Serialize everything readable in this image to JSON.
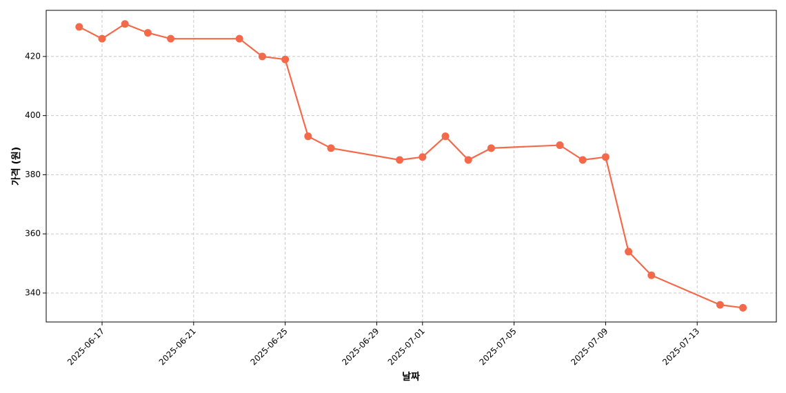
{
  "chart_data": {
    "type": "line",
    "x_label": "날짜",
    "y_label": "가격 (원)",
    "x": [
      "2025-06-16",
      "2025-06-17",
      "2025-06-18",
      "2025-06-19",
      "2025-06-20",
      "2025-06-23",
      "2025-06-24",
      "2025-06-25",
      "2025-06-26",
      "2025-06-27",
      "2025-06-30",
      "2025-07-01",
      "2025-07-02",
      "2025-07-03",
      "2025-07-04",
      "2025-07-07",
      "2025-07-08",
      "2025-07-09",
      "2025-07-10",
      "2025-07-11",
      "2025-07-14",
      "2025-07-15"
    ],
    "series": [
      {
        "color": "#f4694a",
        "values": [
          430,
          426,
          431,
          428,
          426,
          426,
          420,
          419,
          393,
          389,
          385,
          386,
          393,
          385,
          389,
          390,
          385,
          386,
          354,
          346,
          336,
          335
        ]
      }
    ],
    "xlim": [
      "2025-06-14T13:25:00Z",
      "2025-07-16T11:00:00Z"
    ],
    "xticks": [
      "2025-06-17",
      "2025-06-21",
      "2025-06-25",
      "2025-06-29",
      "2025-07-01",
      "2025-07-05",
      "2025-07-09",
      "2025-07-13"
    ],
    "ylim": [
      330.2,
      435.6
    ],
    "yticks": [
      340,
      360,
      380,
      400,
      420
    ],
    "grid": true
  }
}
